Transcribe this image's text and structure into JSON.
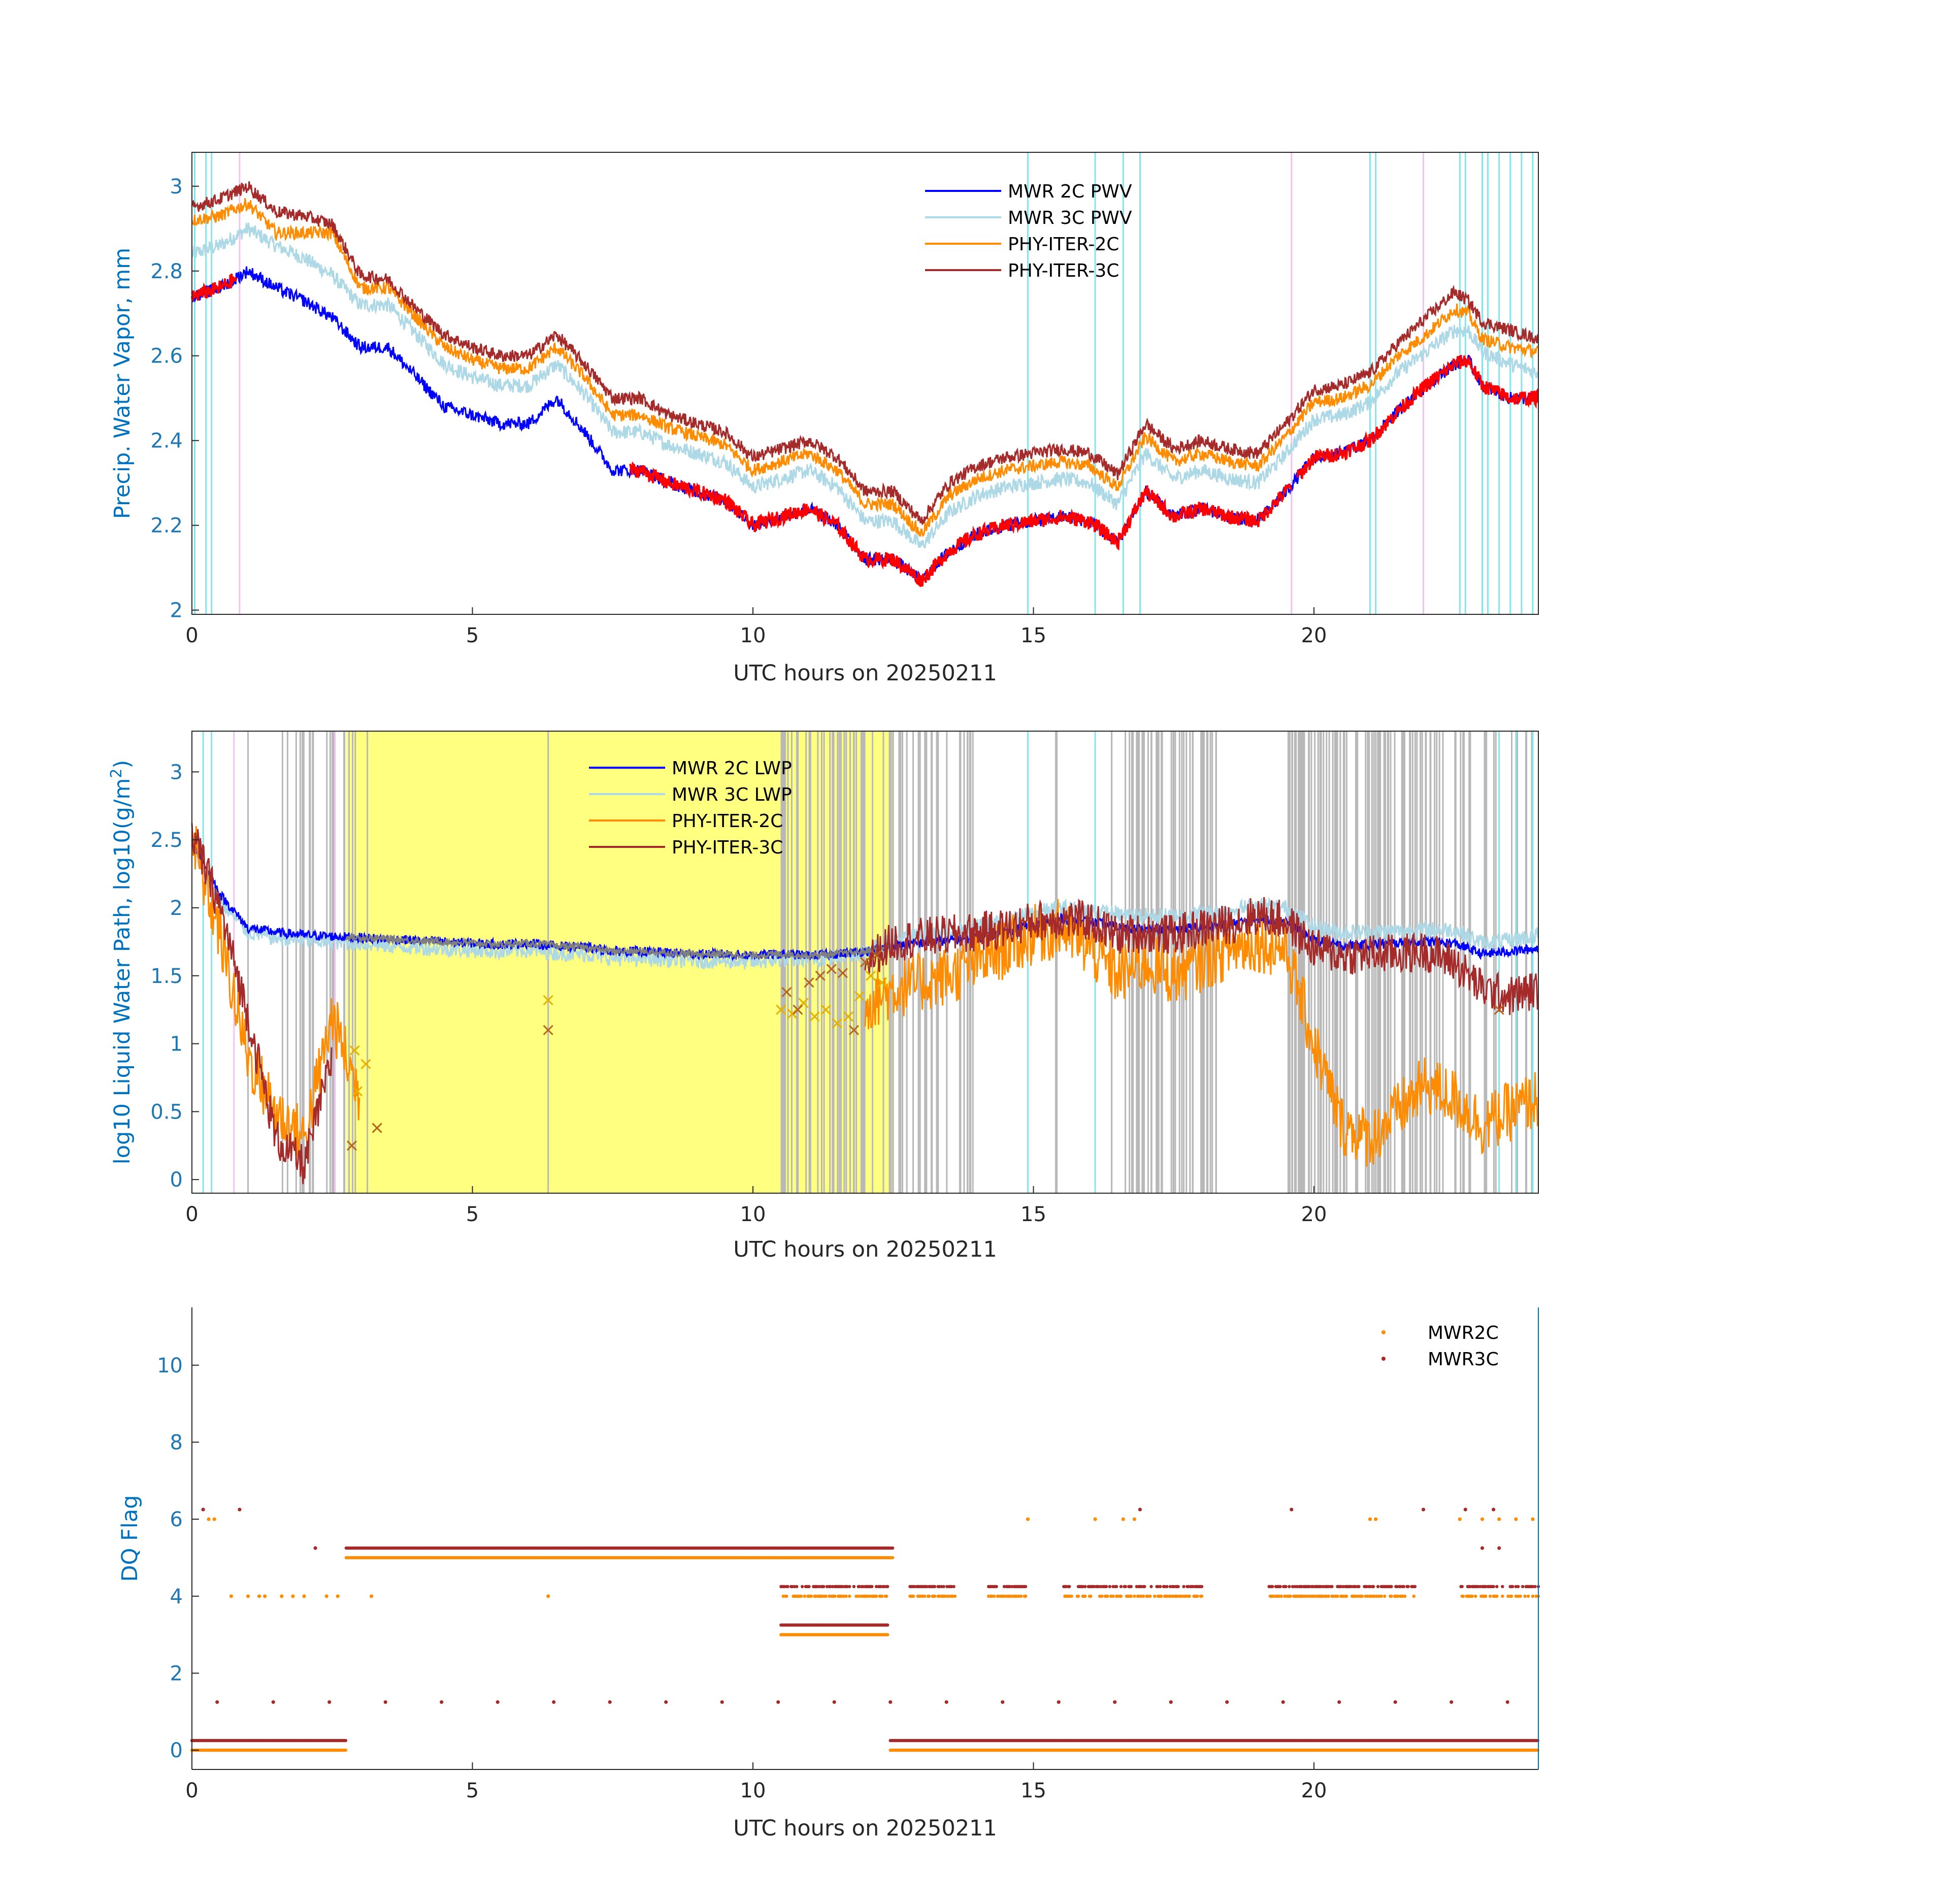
{
  "figure": {
    "date": "20250211"
  },
  "colors": {
    "mwr2c": "#0000ff",
    "mwr3c": "#add8e6",
    "phy2c": "#ff8c00",
    "phy3c": "#a52a2a",
    "flagged": "#ff0000",
    "cyan_band": "#7fe8ee",
    "pink_band": "#f2c2f2",
    "gray_band": "#b8b8b8",
    "yellow_band": "#ffff80",
    "axis_text": "#0072bd",
    "xmark2c": "#e6b000",
    "xmark3c": "#b5651d"
  },
  "chart_data": [
    {
      "id": "pwv",
      "type": "line",
      "xlabel": "UTC hours on 20250211",
      "ylabel": "Precip. Water Vapor, mm",
      "xlim": [
        0,
        24
      ],
      "ylim": [
        1.99,
        3.08
      ],
      "xticks": [
        "0",
        "5",
        "10",
        "15",
        "20"
      ],
      "yticks": [
        "2",
        "2.2",
        "2.4",
        "2.6",
        "2.8",
        "3"
      ],
      "legend": [
        "MWR 2C PWV",
        "MWR 3C PWV",
        "PHY-ITER-2C",
        "PHY-ITER-3C"
      ],
      "legend_position": "top-center",
      "x": [
        0,
        0.5,
        1,
        1.5,
        2,
        2.5,
        3,
        3.5,
        4,
        4.5,
        5,
        5.5,
        6,
        6.5,
        7,
        7.5,
        8,
        8.5,
        9,
        9.5,
        10,
        10.5,
        11,
        11.5,
        12,
        12.5,
        13,
        13.5,
        14,
        14.5,
        15,
        15.5,
        16,
        16.5,
        17,
        17.5,
        18,
        18.5,
        19,
        19.5,
        20,
        20.5,
        21,
        21.5,
        22,
        22.5,
        22.75,
        23,
        23.5,
        24
      ],
      "series": [
        {
          "name": "MWR 2C PWV",
          "color_key": "mwr2c",
          "values": [
            2.74,
            2.76,
            2.8,
            2.76,
            2.73,
            2.69,
            2.62,
            2.62,
            2.55,
            2.48,
            2.46,
            2.44,
            2.44,
            2.5,
            2.42,
            2.33,
            2.33,
            2.3,
            2.28,
            2.26,
            2.2,
            2.22,
            2.24,
            2.2,
            2.12,
            2.12,
            2.07,
            2.14,
            2.18,
            2.2,
            2.21,
            2.22,
            2.21,
            2.16,
            2.28,
            2.22,
            2.24,
            2.22,
            2.21,
            2.28,
            2.36,
            2.37,
            2.4,
            2.47,
            2.53,
            2.58,
            2.59,
            2.53,
            2.5,
            2.5
          ]
        },
        {
          "name": "MWR 3C PWV",
          "color_key": "mwr3c",
          "values": [
            2.84,
            2.86,
            2.9,
            2.86,
            2.83,
            2.79,
            2.72,
            2.72,
            2.65,
            2.58,
            2.55,
            2.53,
            2.53,
            2.58,
            2.51,
            2.42,
            2.42,
            2.39,
            2.37,
            2.35,
            2.29,
            2.31,
            2.33,
            2.29,
            2.21,
            2.21,
            2.15,
            2.23,
            2.27,
            2.29,
            2.3,
            2.31,
            2.3,
            2.25,
            2.37,
            2.31,
            2.33,
            2.31,
            2.3,
            2.37,
            2.45,
            2.46,
            2.49,
            2.56,
            2.61,
            2.66,
            2.66,
            2.61,
            2.58,
            2.56
          ]
        },
        {
          "name": "PHY-ITER-2C",
          "color_key": "phy2c",
          "values": [
            2.92,
            2.93,
            2.96,
            2.89,
            2.89,
            2.89,
            2.76,
            2.76,
            2.69,
            2.62,
            2.59,
            2.57,
            2.57,
            2.62,
            2.55,
            2.46,
            2.46,
            2.43,
            2.41,
            2.39,
            2.33,
            2.35,
            2.37,
            2.33,
            2.25,
            2.25,
            2.18,
            2.27,
            2.31,
            2.33,
            2.34,
            2.35,
            2.34,
            2.29,
            2.41,
            2.35,
            2.37,
            2.35,
            2.34,
            2.41,
            2.49,
            2.5,
            2.53,
            2.6,
            2.65,
            2.71,
            2.7,
            2.64,
            2.62,
            2.61
          ]
        },
        {
          "name": "PHY-ITER-3C",
          "color_key": "phy3c",
          "values": [
            2.95,
            2.97,
            3.0,
            2.94,
            2.93,
            2.91,
            2.79,
            2.78,
            2.71,
            2.65,
            2.62,
            2.6,
            2.6,
            2.65,
            2.58,
            2.5,
            2.5,
            2.46,
            2.44,
            2.42,
            2.36,
            2.38,
            2.4,
            2.36,
            2.28,
            2.28,
            2.21,
            2.3,
            2.34,
            2.36,
            2.37,
            2.38,
            2.37,
            2.32,
            2.44,
            2.38,
            2.4,
            2.38,
            2.37,
            2.44,
            2.52,
            2.53,
            2.56,
            2.63,
            2.69,
            2.75,
            2.73,
            2.68,
            2.66,
            2.64
          ]
        }
      ],
      "flagged_note": "red segments overlay MWR 2C where flagged"
    },
    {
      "id": "lwp",
      "type": "line",
      "xlabel": "UTC hours on 20250211",
      "ylabel": "log10 Liquid Water Path, log10(g/m",
      "ylabel_sup": "2",
      "ylabel_close": ")",
      "xlim": [
        0,
        24
      ],
      "ylim": [
        -0.1,
        3.3
      ],
      "xticks": [
        "0",
        "5",
        "10",
        "15",
        "20"
      ],
      "yticks": [
        "0",
        "0.5",
        "1",
        "1.5",
        "2",
        "2.5",
        "3"
      ],
      "legend": [
        "MWR 2C LWP",
        "MWR 3C LWP",
        "PHY-ITER-2C",
        "PHY-ITER-3C"
      ],
      "legend_position": "top-center",
      "yellow_band": [
        2.75,
        12.5
      ],
      "x": [
        0,
        0.5,
        1,
        1.5,
        2,
        2.5,
        3,
        3.5,
        4,
        4.5,
        5,
        5.5,
        6,
        6.5,
        7,
        7.5,
        8,
        8.5,
        9,
        9.5,
        10,
        10.5,
        11,
        11.5,
        12,
        12.5,
        13,
        13.5,
        14,
        14.5,
        15,
        15.5,
        16,
        16.5,
        17,
        17.5,
        18,
        18.5,
        19,
        19.5,
        20,
        20.5,
        21,
        21.5,
        22,
        22.5,
        23,
        23.5,
        24
      ],
      "series": [
        {
          "name": "MWR 2C LWP",
          "color_key": "mwr2c",
          "values": [
            2.5,
            2.1,
            1.85,
            1.82,
            1.8,
            1.79,
            1.78,
            1.77,
            1.76,
            1.75,
            1.74,
            1.73,
            1.74,
            1.72,
            1.71,
            1.68,
            1.68,
            1.67,
            1.66,
            1.66,
            1.65,
            1.66,
            1.65,
            1.66,
            1.68,
            1.72,
            1.74,
            1.76,
            1.78,
            1.82,
            1.88,
            1.92,
            1.9,
            1.86,
            1.84,
            1.84,
            1.86,
            1.88,
            1.92,
            1.9,
            1.76,
            1.72,
            1.73,
            1.74,
            1.75,
            1.74,
            1.66,
            1.68,
            1.7
          ]
        },
        {
          "name": "MWR 3C LWP",
          "color_key": "mwr3c",
          "values": [
            2.45,
            2.05,
            1.82,
            1.78,
            1.76,
            1.75,
            1.74,
            1.72,
            1.71,
            1.7,
            1.69,
            1.68,
            1.69,
            1.67,
            1.66,
            1.63,
            1.63,
            1.62,
            1.61,
            1.61,
            1.6,
            1.62,
            1.62,
            1.64,
            1.68,
            1.76,
            1.8,
            1.82,
            1.86,
            1.9,
            1.96,
            2.0,
            1.98,
            1.95,
            1.94,
            1.94,
            1.96,
            1.98,
            2.02,
            2.0,
            1.86,
            1.82,
            1.82,
            1.83,
            1.84,
            1.84,
            1.74,
            1.76,
            1.8
          ]
        },
        {
          "name": "PHY-ITER-2C",
          "color_key": "phy2c",
          "values": [
            2.5,
            1.8,
            0.9,
            0.5,
            0.3,
            1.2,
            0.6,
            null,
            null,
            null,
            null,
            null,
            null,
            null,
            null,
            null,
            null,
            null,
            null,
            null,
            null,
            null,
            null,
            null,
            1.3,
            1.4,
            1.45,
            1.5,
            1.6,
            1.7,
            1.8,
            1.85,
            1.7,
            1.5,
            1.6,
            1.5,
            1.6,
            1.7,
            1.75,
            1.7,
            1.0,
            0.4,
            0.3,
            0.5,
            0.7,
            0.6,
            0.4,
            0.5,
            0.6
          ]
        },
        {
          "name": "PHY-ITER-3C",
          "color_key": "phy3c",
          "values": [
            2.55,
            2.0,
            1.2,
            0.3,
            0.1,
            0.9,
            null,
            null,
            null,
            null,
            null,
            null,
            null,
            null,
            null,
            null,
            null,
            null,
            null,
            null,
            null,
            null,
            null,
            null,
            1.6,
            1.75,
            1.78,
            1.8,
            1.82,
            1.85,
            1.9,
            1.92,
            1.9,
            1.8,
            1.82,
            1.8,
            1.85,
            1.88,
            1.95,
            1.9,
            1.7,
            1.65,
            1.66,
            1.66,
            1.68,
            1.6,
            1.4,
            1.35,
            1.4
          ]
        }
      ],
      "markers_2c": [
        [
          2.9,
          0.95
        ],
        [
          2.95,
          0.65
        ],
        [
          3.1,
          0.85
        ],
        [
          3.3,
          0.38
        ],
        [
          6.35,
          1.32
        ],
        [
          10.5,
          1.25
        ],
        [
          10.7,
          1.22
        ],
        [
          10.9,
          1.3
        ],
        [
          11.1,
          1.2
        ],
        [
          11.3,
          1.25
        ],
        [
          11.5,
          1.15
        ],
        [
          11.7,
          1.2
        ],
        [
          11.9,
          1.35
        ],
        [
          12.1,
          1.5
        ],
        [
          12.3,
          1.45
        ]
      ],
      "markers_3c": [
        [
          2.85,
          0.25
        ],
        [
          3.3,
          0.38
        ],
        [
          6.35,
          1.1
        ],
        [
          10.6,
          1.38
        ],
        [
          10.8,
          1.25
        ],
        [
          11.0,
          1.45
        ],
        [
          11.2,
          1.5
        ],
        [
          11.4,
          1.55
        ],
        [
          11.6,
          1.52
        ],
        [
          11.8,
          1.1
        ],
        [
          12.0,
          1.6
        ],
        [
          12.2,
          1.65
        ],
        [
          23.3,
          1.25
        ]
      ]
    },
    {
      "id": "dq",
      "type": "scatter",
      "xlabel": "UTC hours on 20250211",
      "ylabel": "DQ Flag",
      "xlim": [
        0,
        24
      ],
      "ylim": [
        -0.5,
        11.5
      ],
      "xticks": [
        "0",
        "5",
        "10",
        "15",
        "20"
      ],
      "yticks": [
        "0",
        "2",
        "4",
        "6",
        "8",
        "10"
      ],
      "legend": [
        "MWR2C",
        "MWR3C"
      ],
      "legend_position": "top-right",
      "series": [
        {
          "name": "MWR2C",
          "color_key": "phy2c",
          "runs": [
            [
              0,
              2.75,
              0
            ],
            [
              12.45,
              24,
              0
            ],
            [
              2.75,
              12.5,
              5
            ],
            [
              10.5,
              12.4,
              3
            ]
          ],
          "points": [
            [
              0.3,
              6
            ],
            [
              0.4,
              6
            ],
            [
              0.7,
              4
            ],
            [
              1.0,
              4
            ],
            [
              1.2,
              4
            ],
            [
              1.3,
              4
            ],
            [
              1.6,
              4
            ],
            [
              1.8,
              4
            ],
            [
              2.0,
              4
            ],
            [
              2.4,
              4
            ],
            [
              2.6,
              4
            ],
            [
              3.2,
              4
            ],
            [
              6.35,
              4
            ],
            [
              14.9,
              6
            ],
            [
              16.1,
              6
            ],
            [
              16.6,
              6
            ],
            [
              16.8,
              6
            ],
            [
              21.0,
              6
            ],
            [
              21.1,
              6
            ],
            [
              22.6,
              6
            ],
            [
              23.0,
              6
            ],
            [
              23.3,
              6
            ],
            [
              23.6,
              6
            ],
            [
              23.9,
              6
            ]
          ],
          "bands": [
            [
              10.5,
              12.4,
              4
            ],
            [
              12.8,
              13.6,
              4
            ],
            [
              14.2,
              14.9,
              4
            ],
            [
              15.5,
              18.0,
              4
            ],
            [
              19.2,
              21.8,
              4
            ],
            [
              22.6,
              24,
              4
            ]
          ]
        },
        {
          "name": "MWR3C",
          "color_key": "phy3c",
          "runs": [
            [
              0,
              2.75,
              0.25
            ],
            [
              12.45,
              24,
              0.25
            ],
            [
              2.75,
              12.5,
              5.25
            ],
            [
              10.5,
              12.4,
              3.25
            ]
          ],
          "points": [
            [
              0.2,
              6.25
            ],
            [
              0.45,
              1.25
            ],
            [
              0.85,
              6.25
            ],
            [
              1.45,
              1.25
            ],
            [
              2.2,
              5.25
            ],
            [
              2.45,
              1.25
            ],
            [
              3.45,
              1.25
            ],
            [
              4.45,
              1.25
            ],
            [
              5.45,
              1.25
            ],
            [
              6.45,
              1.25
            ],
            [
              7.45,
              1.25
            ],
            [
              8.45,
              1.25
            ],
            [
              9.45,
              1.25
            ],
            [
              10.45,
              1.25
            ],
            [
              11.45,
              1.25
            ],
            [
              12.45,
              1.25
            ],
            [
              13.45,
              1.25
            ],
            [
              14.45,
              1.25
            ],
            [
              15.45,
              1.25
            ],
            [
              16.45,
              1.25
            ],
            [
              16.9,
              6.25
            ],
            [
              17.45,
              1.25
            ],
            [
              18.45,
              1.25
            ],
            [
              19.45,
              1.25
            ],
            [
              19.6,
              6.25
            ],
            [
              20.45,
              1.25
            ],
            [
              21.45,
              1.25
            ],
            [
              21.95,
              6.25
            ],
            [
              22.45,
              1.25
            ],
            [
              22.7,
              6.25
            ],
            [
              23.2,
              6.25
            ],
            [
              23.45,
              1.25
            ],
            [
              23.0,
              5.25
            ],
            [
              23.3,
              5.25
            ]
          ],
          "bands": [
            [
              10.5,
              12.4,
              4.25
            ],
            [
              12.8,
              13.6,
              4.25
            ],
            [
              14.2,
              14.9,
              4.25
            ],
            [
              15.5,
              18.0,
              4.25
            ],
            [
              19.2,
              21.8,
              4.25
            ],
            [
              22.6,
              24,
              4.25
            ]
          ]
        }
      ]
    }
  ]
}
